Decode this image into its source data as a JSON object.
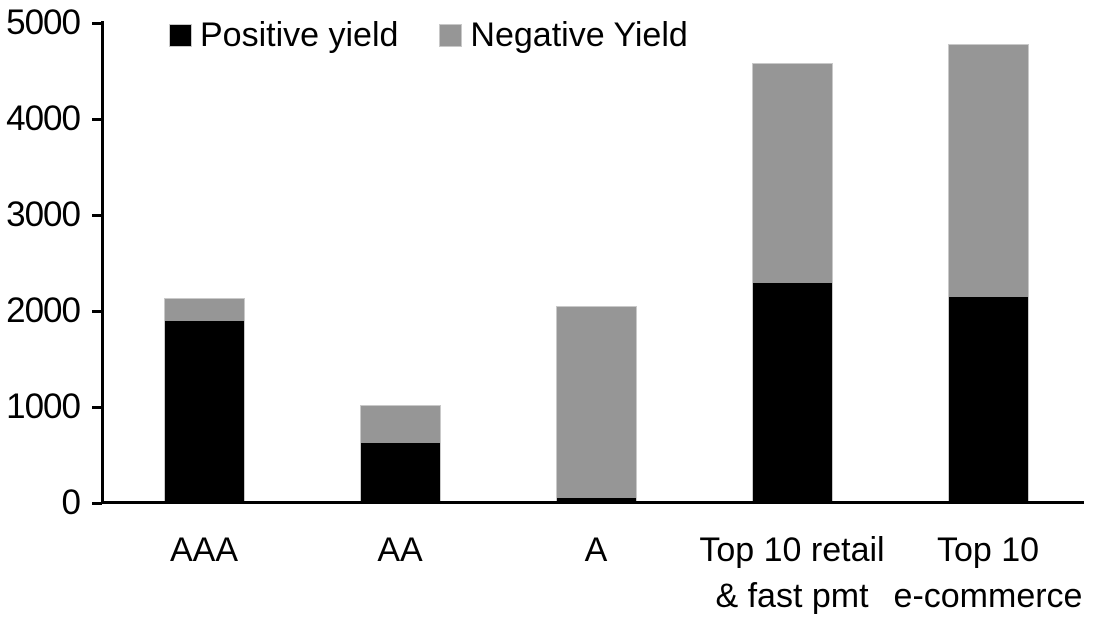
{
  "chart_data": {
    "type": "bar",
    "stacked": true,
    "title": "",
    "xlabel": "",
    "ylabel": "",
    "categories": [
      "AAA",
      "AA",
      "A",
      "Top 10 retail\n& fast pmt",
      "Top 10\ne-commerce"
    ],
    "series": [
      {
        "name": "Positive yield",
        "color": "#000000",
        "values": [
          1900,
          620,
          50,
          2290,
          2150
        ]
      },
      {
        "name": "Negative Yield",
        "color": "#969696",
        "values": [
          230,
          390,
          1990,
          2280,
          2620
        ]
      }
    ],
    "totals": [
      2130,
      1010,
      2040,
      4570,
      4770
    ],
    "ylim": [
      0,
      5000
    ],
    "yticks": [
      0,
      1000,
      2000,
      3000,
      4000,
      5000
    ],
    "grid": false,
    "legend_position": "top-left-inside"
  },
  "legend": {
    "items": [
      {
        "label": "Positive yield",
        "color": "#000000"
      },
      {
        "label": "Negative Yield",
        "color": "#969696"
      }
    ]
  },
  "colors": {
    "positive_series": "#000000",
    "negative_series": "#969696",
    "axis": "#000000",
    "background": "#ffffff",
    "bar_outline": "#c9c9c9"
  }
}
